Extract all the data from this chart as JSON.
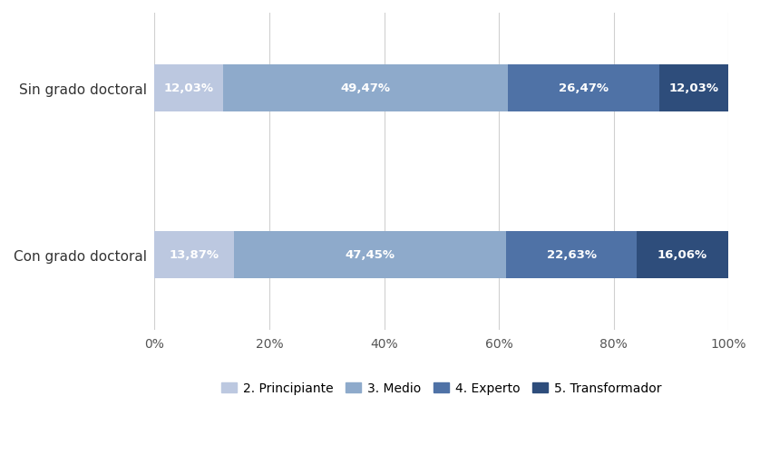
{
  "categories": [
    "Sin grado doctoral",
    "Con grado doctoral"
  ],
  "series": [
    {
      "label": "2. Principiante",
      "values": [
        12.03,
        13.87
      ],
      "color": "#bcc8e0"
    },
    {
      "label": "3. Medio",
      "values": [
        49.47,
        47.45
      ],
      "color": "#8eaacb"
    },
    {
      "label": "4. Experto",
      "values": [
        26.47,
        22.63
      ],
      "color": "#4f72a6"
    },
    {
      "label": "5. Transformador",
      "values": [
        12.03,
        16.06
      ],
      "color": "#2e4d7b"
    }
  ],
  "xlim": [
    0,
    100
  ],
  "xticks": [
    0,
    20,
    40,
    60,
    80,
    100
  ],
  "xticklabels": [
    "0%",
    "20%",
    "40%",
    "60%",
    "80%",
    "100%"
  ],
  "label_color": "#ffffff",
  "label_fontsize": 9.5,
  "bar_height": 0.28,
  "figsize": [
    8.38,
    5.02
  ],
  "dpi": 100,
  "background_color": "#ffffff",
  "grid_color": "#d0d0d0",
  "ytick_fontsize": 11,
  "xtick_fontsize": 10
}
